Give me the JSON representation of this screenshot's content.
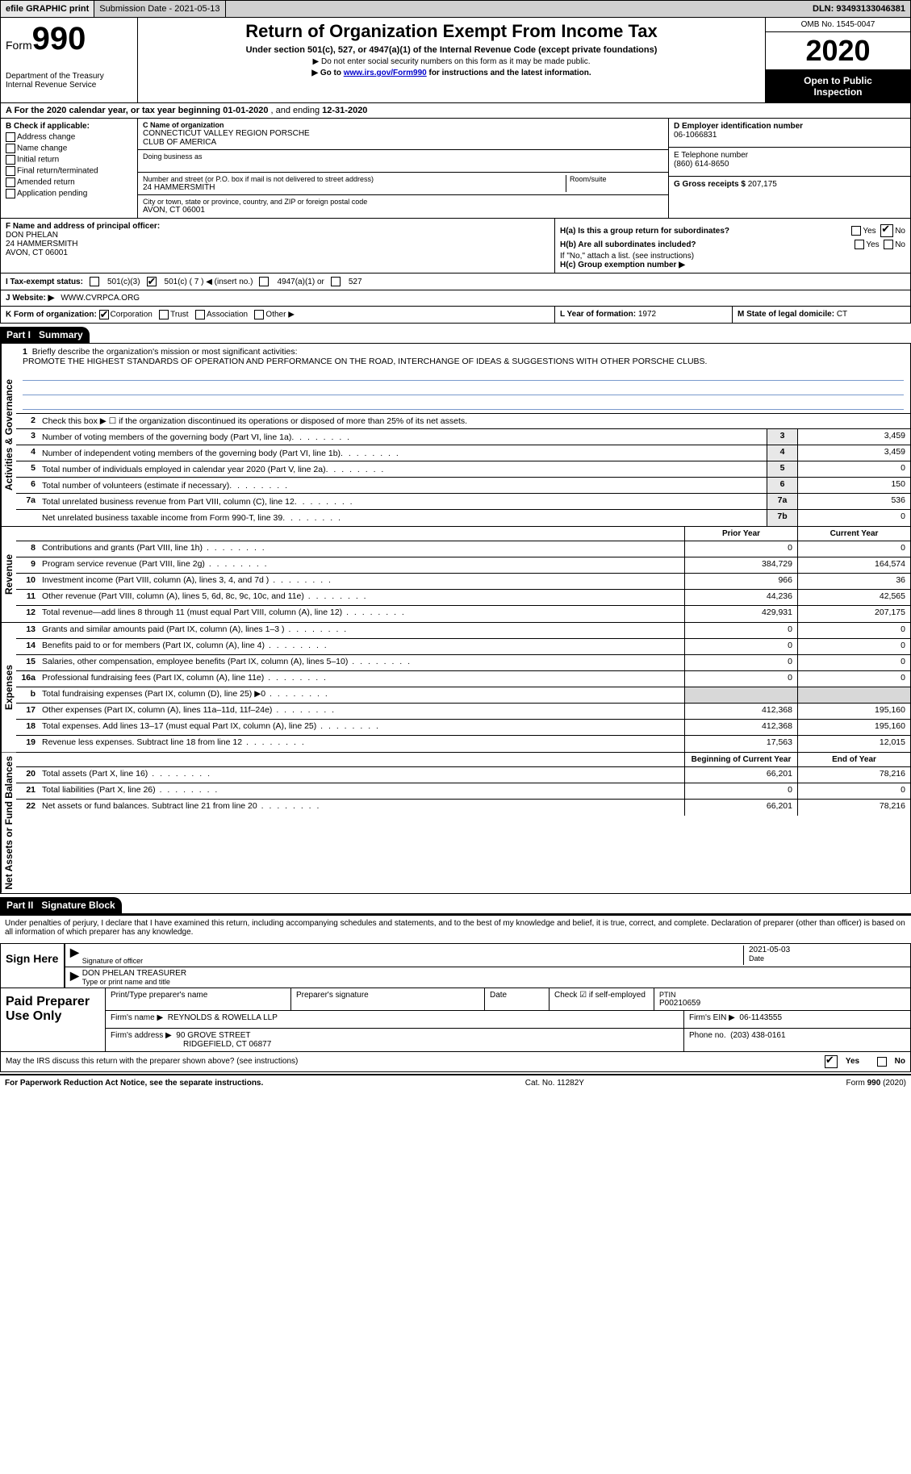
{
  "topbar": {
    "efile": "efile GRAPHIC print",
    "submission_label": "Submission Date - 2021-05-13",
    "dln_label": "DLN: 93493133046381"
  },
  "header": {
    "form_word": "Form",
    "form_num": "990",
    "dept1": "Department of the Treasury",
    "dept2": "Internal Revenue Service",
    "title": "Return of Organization Exempt From Income Tax",
    "subtitle": "Under section 501(c), 527, or 4947(a)(1) of the Internal Revenue Code (except private foundations)",
    "note1": "▶ Do not enter social security numbers on this form as it may be made public.",
    "note2_pre": "▶ Go to ",
    "note2_link": "www.irs.gov/Form990",
    "note2_post": " for instructions and the latest information.",
    "omb": "OMB No. 1545-0047",
    "year": "2020",
    "inspect1": "Open to Public",
    "inspect2": "Inspection"
  },
  "period": {
    "text_a": "A For the 2020 calendar year, or tax year beginning ",
    "begin": "01-01-2020",
    "text_b": " , and ending ",
    "end": "12-31-2020"
  },
  "boxB": {
    "header": "B Check if applicable:",
    "opts": [
      "Address change",
      "Name change",
      "Initial return",
      "Final return/terminated",
      "Amended return",
      "Application pending"
    ]
  },
  "boxC": {
    "label": "C Name of organization",
    "org1": "CONNECTICUT VALLEY REGION PORSCHE",
    "org2": "CLUB OF AMERICA",
    "dba_label": "Doing business as",
    "addr_label": "Number and street (or P.O. box if mail is not delivered to street address)",
    "room_label": "Room/suite",
    "street": "24 HAMMERSMITH",
    "city_label": "City or town, state or province, country, and ZIP or foreign postal code",
    "city": "AVON, CT  06001"
  },
  "boxD": {
    "label": "D Employer identification number",
    "val": "06-1066831"
  },
  "boxE": {
    "label": "E Telephone number",
    "val": "(860) 614-8650"
  },
  "boxG": {
    "label": "G Gross receipts $",
    "val": "207,175"
  },
  "boxF": {
    "label": "F Name and address of principal officer:",
    "name": "DON PHELAN",
    "street": "24 HAMMERSMITH",
    "city": "AVON, CT  06001"
  },
  "boxH": {
    "ha_label": "H(a)  Is this a group return for subordinates?",
    "hb_label": "H(b)  Are all subordinates included?",
    "hb_note": "If \"No,\" attach a list. (see instructions)",
    "hc_label": "H(c)  Group exemption number ▶",
    "yes": "Yes",
    "no": "No",
    "ha_answer": "No"
  },
  "boxI": {
    "label": "I  Tax-exempt status:",
    "o1": "501(c)(3)",
    "o2": "501(c) ( 7 ) ◀ (insert no.)",
    "o3": "4947(a)(1) or",
    "o4": "527",
    "checked_index": 1
  },
  "boxJ": {
    "label": "J  Website: ▶",
    "val": "WWW.CVRPCA.ORG"
  },
  "boxK": {
    "label": "K Form of organization:",
    "opts": [
      "Corporation",
      "Trust",
      "Association",
      "Other ▶"
    ],
    "checked_index": 0
  },
  "boxL": {
    "label": "L Year of formation:",
    "val": "1972"
  },
  "boxM": {
    "label": "M State of legal domicile:",
    "val": "CT"
  },
  "partI": {
    "label": "Part I",
    "title": "Summary"
  },
  "mission": {
    "num": "1",
    "prompt": "Briefly describe the organization's mission or most significant activities:",
    "text": "PROMOTE THE HIGHEST STANDARDS OF OPERATION AND PERFORMANCE ON THE ROAD, INTERCHANGE OF IDEAS & SUGGESTIONS WITH OTHER PORSCHE CLUBS."
  },
  "line2": {
    "num": "2",
    "text": "Check this box ▶ ☐  if the organization discontinued its operations or disposed of more than 25% of its net assets."
  },
  "gov_rows": [
    {
      "num": "3",
      "desc": "Number of voting members of the governing body (Part VI, line 1a)",
      "box": "3",
      "val": "3,459"
    },
    {
      "num": "4",
      "desc": "Number of independent voting members of the governing body (Part VI, line 1b)",
      "box": "4",
      "val": "3,459"
    },
    {
      "num": "5",
      "desc": "Total number of individuals employed in calendar year 2020 (Part V, line 2a)",
      "box": "5",
      "val": "0"
    },
    {
      "num": "6",
      "desc": "Total number of volunteers (estimate if necessary)",
      "box": "6",
      "val": "150"
    },
    {
      "num": "7a",
      "desc": "Total unrelated business revenue from Part VIII, column (C), line 12",
      "box": "7a",
      "val": "536"
    },
    {
      "num": "",
      "desc": "Net unrelated business taxable income from Form 990-T, line 39",
      "box": "7b",
      "val": "0"
    }
  ],
  "side_labels": {
    "gov": "Activities & Governance",
    "rev": "Revenue",
    "exp": "Expenses",
    "net": "Net Assets or Fund Balances"
  },
  "col_headers": {
    "prior": "Prior Year",
    "current": "Current Year",
    "begin": "Beginning of Current Year",
    "end": "End of Year"
  },
  "rev_rows": [
    {
      "num": "8",
      "desc": "Contributions and grants (Part VIII, line 1h)",
      "py": "0",
      "cy": "0"
    },
    {
      "num": "9",
      "desc": "Program service revenue (Part VIII, line 2g)",
      "py": "384,729",
      "cy": "164,574"
    },
    {
      "num": "10",
      "desc": "Investment income (Part VIII, column (A), lines 3, 4, and 7d )",
      "py": "966",
      "cy": "36"
    },
    {
      "num": "11",
      "desc": "Other revenue (Part VIII, column (A), lines 5, 6d, 8c, 9c, 10c, and 11e)",
      "py": "44,236",
      "cy": "42,565"
    },
    {
      "num": "12",
      "desc": "Total revenue—add lines 8 through 11 (must equal Part VIII, column (A), line 12)",
      "py": "429,931",
      "cy": "207,175"
    }
  ],
  "exp_rows": [
    {
      "num": "13",
      "desc": "Grants and similar amounts paid (Part IX, column (A), lines 1–3 )",
      "py": "0",
      "cy": "0"
    },
    {
      "num": "14",
      "desc": "Benefits paid to or for members (Part IX, column (A), line 4)",
      "py": "0",
      "cy": "0"
    },
    {
      "num": "15",
      "desc": "Salaries, other compensation, employee benefits (Part IX, column (A), lines 5–10)",
      "py": "0",
      "cy": "0"
    },
    {
      "num": "16a",
      "desc": "Professional fundraising fees (Part IX, column (A), line 11e)",
      "py": "0",
      "cy": "0"
    },
    {
      "num": "b",
      "desc": "Total fundraising expenses (Part IX, column (D), line 25) ▶0",
      "py": "",
      "cy": "",
      "shade": true
    },
    {
      "num": "17",
      "desc": "Other expenses (Part IX, column (A), lines 11a–11d, 11f–24e)",
      "py": "412,368",
      "cy": "195,160"
    },
    {
      "num": "18",
      "desc": "Total expenses. Add lines 13–17 (must equal Part IX, column (A), line 25)",
      "py": "412,368",
      "cy": "195,160"
    },
    {
      "num": "19",
      "desc": "Revenue less expenses. Subtract line 18 from line 12",
      "py": "17,563",
      "cy": "12,015"
    }
  ],
  "net_rows": [
    {
      "num": "20",
      "desc": "Total assets (Part X, line 16)",
      "py": "66,201",
      "cy": "78,216"
    },
    {
      "num": "21",
      "desc": "Total liabilities (Part X, line 26)",
      "py": "0",
      "cy": "0"
    },
    {
      "num": "22",
      "desc": "Net assets or fund balances. Subtract line 21 from line 20",
      "py": "66,201",
      "cy": "78,216"
    }
  ],
  "partII": {
    "label": "Part II",
    "title": "Signature Block"
  },
  "sig": {
    "penalty": "Under penalties of perjury, I declare that I have examined this return, including accompanying schedules and statements, and to the best of my knowledge and belief, it is true, correct, and complete. Declaration of preparer (other than officer) is based on all information of which preparer has any knowledge.",
    "sign_here": "Sign Here",
    "sig_officer": "Signature of officer",
    "date_label": "Date",
    "date_val": "2021-05-03",
    "name_title": "DON PHELAN TREASURER",
    "type_label": "Type or print name and title"
  },
  "prep": {
    "label": "Paid Preparer Use Only",
    "h1": "Print/Type preparer's name",
    "h2": "Preparer's signature",
    "h3": "Date",
    "h4_check": "Check ☑ if self-employed",
    "h5": "PTIN",
    "ptin": "P00210659",
    "firm_name_label": "Firm's name   ▶",
    "firm_name": "REYNOLDS & ROWELLA LLP",
    "firm_ein_label": "Firm's EIN ▶",
    "firm_ein": "06-1143555",
    "firm_addr_label": "Firm's address ▶",
    "firm_addr1": "90 GROVE STREET",
    "firm_addr2": "RIDGEFIELD, CT  06877",
    "phone_label": "Phone no.",
    "phone": "(203) 438-0161"
  },
  "discuss": {
    "text": "May the IRS discuss this return with the preparer shown above? (see instructions)",
    "yes": "Yes",
    "no": "No",
    "answer": "Yes"
  },
  "footer": {
    "left": "For Paperwork Reduction Act Notice, see the separate instructions.",
    "mid": "Cat. No. 11282Y",
    "right": "Form 990 (2020)"
  },
  "colors": {
    "link": "#0000cc",
    "rule_blue": "#7a9acc",
    "grey_bg": "#d0d0d0",
    "shade": "#d8d8d8"
  }
}
